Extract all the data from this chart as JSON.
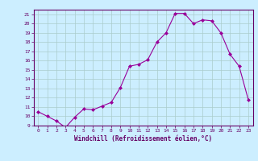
{
  "x": [
    0,
    1,
    2,
    3,
    4,
    5,
    6,
    7,
    8,
    9,
    10,
    11,
    12,
    13,
    14,
    15,
    16,
    17,
    18,
    19,
    20,
    21,
    22,
    23
  ],
  "y": [
    10.5,
    10.0,
    9.5,
    8.8,
    9.9,
    10.8,
    10.7,
    11.1,
    11.5,
    13.1,
    15.4,
    15.6,
    16.1,
    18.0,
    19.0,
    21.1,
    21.1,
    20.0,
    20.4,
    20.3,
    19.0,
    16.7,
    15.4,
    11.8
  ],
  "line_color": "#990099",
  "marker": "D",
  "marker_size": 2,
  "bg_color": "#cceeff",
  "grid_color": "#aacccc",
  "xlim": [
    -0.5,
    23.5
  ],
  "ylim": [
    9,
    21.5
  ],
  "yticks": [
    9,
    10,
    11,
    12,
    13,
    14,
    15,
    16,
    17,
    18,
    19,
    20,
    21
  ],
  "xticks": [
    0,
    1,
    2,
    3,
    4,
    5,
    6,
    7,
    8,
    9,
    10,
    11,
    12,
    13,
    14,
    15,
    16,
    17,
    18,
    19,
    20,
    21,
    22,
    23
  ],
  "xlabel": "Windchill (Refroidissement éolien,°C)",
  "label_color": "#660066",
  "axis_color": "#660066"
}
